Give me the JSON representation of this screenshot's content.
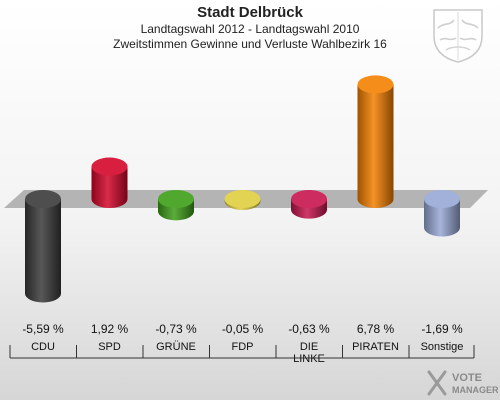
{
  "header": {
    "title": "Stadt Delbrück",
    "subtitle": "Landtagswahl 2012 - Landtagswahl 2010",
    "subtitle2": "Zweitstimmen Gewinne und Verluste Wahlbezirk 16"
  },
  "brand": {
    "line1": "VOTE",
    "line2": "MANAGER"
  },
  "chart_data": {
    "type": "bar",
    "title": "Stadt Delbrück",
    "categories": [
      "CDU",
      "SPD",
      "GRÜNE",
      "FDP",
      "DIE LINKE",
      "PIRATEN",
      "Sonstige"
    ],
    "values": [
      -5.59,
      1.92,
      -0.73,
      -0.05,
      -0.63,
      6.78,
      -1.69
    ],
    "value_labels": [
      "-5,59 %",
      "1,92 %",
      "-0,73 %",
      "-0,05 %",
      "-0,63 %",
      "6,78 %",
      "-1,69 %"
    ],
    "colors": [
      "#3a3a3a",
      "#d4062a",
      "#3e9e18",
      "#dfce3f",
      "#c7154f",
      "#f38000",
      "#97a8d5"
    ],
    "ylim": [
      -6,
      7.5
    ],
    "grid": false,
    "legend": "none"
  }
}
